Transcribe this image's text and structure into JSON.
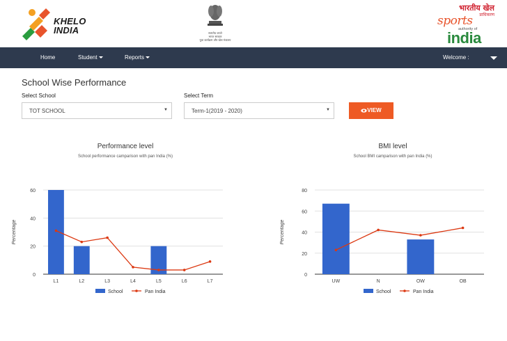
{
  "header": {
    "khelo_logo_text": "KHELO INDIA",
    "emblem_caption_lines": [
      "सत्यमेव जयते",
      "भारत सरकार",
      "युवा कार्यक्रम और खेल मंत्रालय"
    ],
    "sai_logo": {
      "hindi_line1": "भारतीय खेल",
      "hindi_line2": "प्राधिकरण",
      "sports": "sports",
      "authority": "authority of",
      "india": "india"
    }
  },
  "nav": {
    "home": "Home",
    "student": "Student",
    "reports": "Reports",
    "welcome": "Welcome :"
  },
  "page": {
    "title": "School Wise Performance",
    "select_school_label": "Select School",
    "select_school_value": "TOT SCHOOL",
    "select_term_label": "Select Term",
    "select_term_value": "Term-1(2019 - 2020)",
    "view_button": "VIEW",
    "view_icon": "eye-icon"
  },
  "colors": {
    "navbar": "#2e3a4e",
    "accent": "#ee5a24",
    "school_bar": "#3366cc",
    "pan_india_line": "#dc3912"
  },
  "chart_data": [
    {
      "type": "bar",
      "title": "Performance level",
      "subtitle": "School performance camparison with pan India (%)",
      "ylabel": "Percentage",
      "xlabel": "",
      "categories": [
        "L1",
        "L2",
        "L3",
        "L4",
        "L5",
        "L6",
        "L7"
      ],
      "ylim": [
        0,
        60
      ],
      "yticks": [
        0,
        20,
        40,
        60
      ],
      "series": [
        {
          "name": "School",
          "type": "bar",
          "values": [
            60,
            20,
            0,
            0,
            20,
            0,
            0
          ]
        },
        {
          "name": "Pan India",
          "type": "line",
          "values": [
            31,
            23,
            26,
            5,
            3,
            3,
            9
          ]
        }
      ],
      "legend": "bottom",
      "grid": true
    },
    {
      "type": "bar",
      "title": "BMI level",
      "subtitle": "School BMI camparison with pan India (%)",
      "ylabel": "Percentage",
      "xlabel": "",
      "categories": [
        "UW",
        "N",
        "OW",
        "OB"
      ],
      "ylim": [
        0,
        80
      ],
      "yticks": [
        0,
        20,
        40,
        60,
        80
      ],
      "series": [
        {
          "name": "School",
          "type": "bar",
          "values": [
            67,
            0,
            33,
            0
          ]
        },
        {
          "name": "Pan India",
          "type": "line",
          "values": [
            23,
            42,
            37,
            44
          ]
        }
      ],
      "legend": "bottom",
      "grid": true
    }
  ]
}
